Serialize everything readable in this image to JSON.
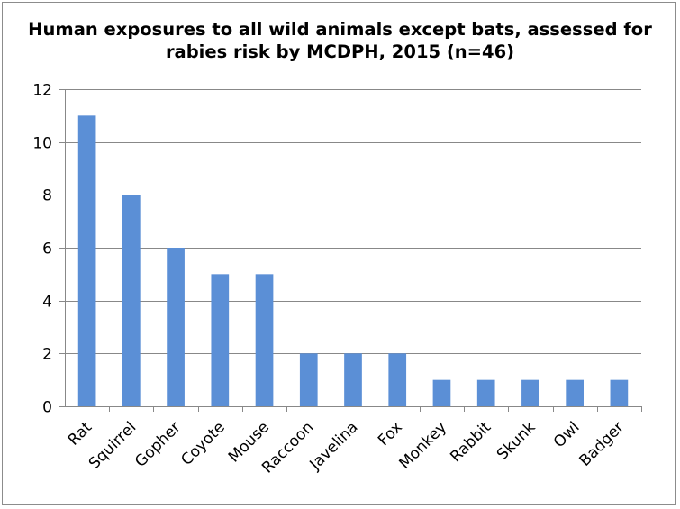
{
  "chart_data": {
    "type": "bar",
    "title_lines": [
      "Human exposures to all wild animals except bats, assessed for",
      "rabies risk by MCDPH, 2015 (n=46)"
    ],
    "categories": [
      "Rat",
      "Squirrel",
      "Gopher",
      "Coyote",
      "Mouse",
      "Raccoon",
      "Javelina",
      "Fox",
      "Monkey",
      "Rabbit",
      "Skunk",
      "Owl",
      "Badger"
    ],
    "values": [
      11,
      8,
      6,
      5,
      5,
      2,
      2,
      2,
      1,
      1,
      1,
      1,
      1
    ],
    "ylim": [
      0,
      12
    ],
    "yticks": [
      0,
      2,
      4,
      6,
      8,
      10,
      12
    ],
    "grid": true,
    "legend": "none",
    "bar_color": "#5b8fd6",
    "grid_color": "#888888",
    "xlabel": "",
    "ylabel": ""
  }
}
